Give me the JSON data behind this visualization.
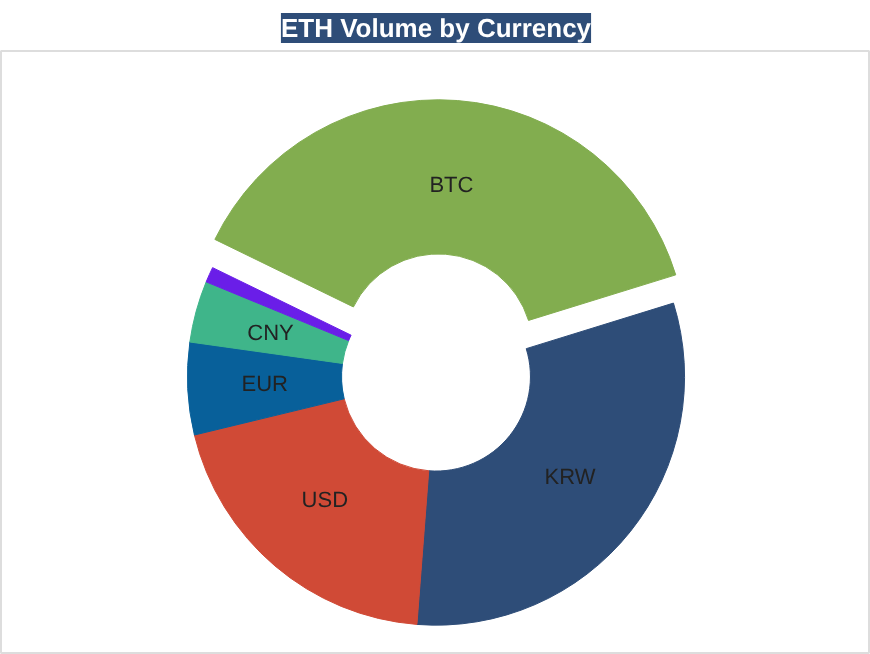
{
  "chart_data": {
    "type": "donut",
    "title": "ETH Volume by Currency",
    "categories": [
      "BTC",
      "KRW",
      "USD",
      "EUR",
      "CNY",
      null
    ],
    "values": [
      38,
      31,
      20,
      6,
      4,
      1
    ],
    "colors": [
      "#82ad4f",
      "#2e4d78",
      "#d04a36",
      "#08609a",
      "#3fb58a",
      "#6a1ee8"
    ]
  }
}
